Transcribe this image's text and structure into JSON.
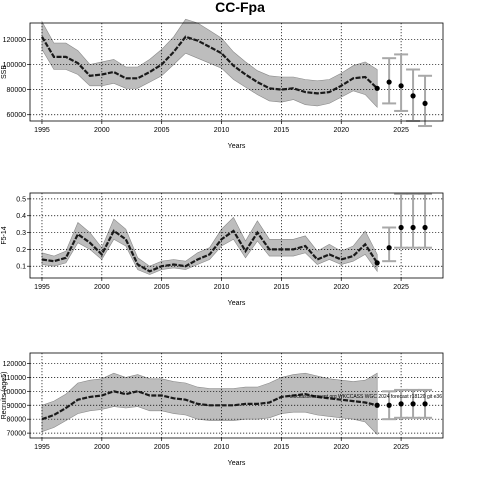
{
  "title": "CC-Fpa",
  "colors": {
    "band": "#bdbdbd",
    "line": "#1a1a1a",
    "forecast": "#a8a8a8",
    "grid": "#000000"
  },
  "chart_data": [
    {
      "type": "line",
      "xlabel": "Years",
      "ylabel": "SSB",
      "xlim": [
        1994,
        2028.5
      ],
      "ylim": [
        55000,
        133000
      ],
      "xticks": [
        1995,
        2000,
        2005,
        2010,
        2015,
        2020,
        2025
      ],
      "yticks": [
        60000,
        80000,
        100000,
        120000
      ],
      "grid": true,
      "x": [
        1995,
        1996,
        1997,
        1998,
        1999,
        2000,
        2001,
        2002,
        2003,
        2004,
        2005,
        2006,
        2007,
        2008,
        2009,
        2010,
        2011,
        2012,
        2013,
        2014,
        2015,
        2016,
        2017,
        2018,
        2019,
        2020,
        2021,
        2022,
        2023
      ],
      "series": [
        {
          "values": [
            122000,
            106000,
            106000,
            101000,
            91000,
            92000,
            94000,
            89000,
            89000,
            94000,
            100000,
            110000,
            122000,
            119000,
            114000,
            109000,
            99000,
            92000,
            86000,
            81000,
            80000,
            81000,
            78000,
            77000,
            78000,
            83000,
            89000,
            90000,
            81000
          ]
        }
      ],
      "lower": [
        112000,
        96000,
        96000,
        92000,
        83000,
        83000,
        85000,
        81000,
        81000,
        86000,
        91000,
        100000,
        109000,
        105000,
        101000,
        97000,
        88000,
        82000,
        76000,
        71000,
        70000,
        72000,
        68000,
        67000,
        69000,
        74000,
        79000,
        76000,
        66000
      ],
      "upper": [
        134000,
        117000,
        117000,
        111000,
        100000,
        102000,
        104000,
        98000,
        98000,
        104000,
        112000,
        122000,
        136000,
        133000,
        127000,
        121000,
        110000,
        102000,
        95000,
        91000,
        90000,
        90000,
        88000,
        87000,
        88000,
        93000,
        99000,
        102000,
        96000
      ],
      "forecast": {
        "x": [
          2024,
          2025,
          2026,
          2027
        ],
        "values": [
          86000,
          83000,
          75000,
          69000
        ],
        "lower": [
          69000,
          63000,
          55000,
          51000
        ],
        "upper": [
          105000,
          108000,
          96000,
          91000
        ]
      }
    },
    {
      "type": "line",
      "xlabel": "Years",
      "ylabel": "F5-14",
      "xlim": [
        1994,
        2028.5
      ],
      "ylim": [
        0.03,
        0.535
      ],
      "xticks": [
        1995,
        2000,
        2005,
        2010,
        2015,
        2020,
        2025
      ],
      "yticks": [
        0.1,
        0.2,
        0.3,
        0.4,
        0.5
      ],
      "grid": true,
      "x": [
        1995,
        1996,
        1997,
        1998,
        1999,
        2000,
        2001,
        2002,
        2003,
        2004,
        2005,
        2006,
        2007,
        2008,
        2009,
        2010,
        2011,
        2012,
        2013,
        2014,
        2015,
        2016,
        2017,
        2018,
        2019,
        2020,
        2021,
        2022,
        2023
      ],
      "series": [
        {
          "values": [
            0.14,
            0.13,
            0.15,
            0.29,
            0.24,
            0.17,
            0.31,
            0.26,
            0.11,
            0.07,
            0.1,
            0.11,
            0.1,
            0.14,
            0.17,
            0.26,
            0.31,
            0.19,
            0.3,
            0.2,
            0.2,
            0.2,
            0.22,
            0.14,
            0.17,
            0.14,
            0.16,
            0.23,
            0.12
          ]
        }
      ],
      "lower": [
        0.11,
        0.1,
        0.12,
        0.24,
        0.2,
        0.14,
        0.26,
        0.22,
        0.08,
        0.05,
        0.08,
        0.09,
        0.08,
        0.11,
        0.14,
        0.22,
        0.26,
        0.15,
        0.25,
        0.16,
        0.16,
        0.16,
        0.18,
        0.11,
        0.14,
        0.11,
        0.13,
        0.17,
        0.07
      ],
      "upper": [
        0.18,
        0.16,
        0.19,
        0.36,
        0.3,
        0.21,
        0.38,
        0.32,
        0.15,
        0.1,
        0.13,
        0.14,
        0.13,
        0.18,
        0.21,
        0.32,
        0.39,
        0.25,
        0.37,
        0.26,
        0.26,
        0.26,
        0.28,
        0.19,
        0.23,
        0.19,
        0.22,
        0.31,
        0.17
      ],
      "forecast": {
        "x": [
          2024,
          2025,
          2026,
          2027
        ],
        "values": [
          0.21,
          0.33,
          0.33,
          0.33
        ],
        "lower": [
          0.13,
          0.21,
          0.21,
          0.21
        ],
        "upper": [
          0.33,
          0.53,
          0.53,
          0.53
        ]
      }
    },
    {
      "type": "line",
      "xlabel": "Years",
      "ylabel": "Recruits (age5)",
      "xlim": [
        1994,
        2028.5
      ],
      "ylim": [
        66500,
        127500
      ],
      "xticks": [
        1995,
        2000,
        2005,
        2010,
        2015,
        2020,
        2025
      ],
      "yticks": [
        70000,
        80000,
        90000,
        100000,
        110000,
        120000
      ],
      "grid": true,
      "x": [
        1995,
        1996,
        1997,
        1998,
        1999,
        2000,
        2001,
        2002,
        2003,
        2004,
        2005,
        2006,
        2007,
        2008,
        2009,
        2010,
        2011,
        2012,
        2013,
        2014,
        2015,
        2016,
        2017,
        2018,
        2019,
        2020,
        2021,
        2022,
        2023
      ],
      "series": [
        {
          "values": [
            80000,
            83000,
            88000,
            94000,
            96000,
            97000,
            100000,
            98000,
            100000,
            97000,
            97000,
            95000,
            94000,
            91000,
            90000,
            90000,
            90000,
            91000,
            91000,
            92000,
            96000,
            97000,
            98000,
            96000,
            95000,
            94000,
            93000,
            92000,
            90000
          ]
        }
      ],
      "lower": [
        71000,
        74000,
        79000,
        84000,
        86000,
        87000,
        89000,
        88000,
        89000,
        86000,
        86000,
        84000,
        83000,
        80000,
        79000,
        79000,
        79000,
        80000,
        80000,
        81000,
        84000,
        85000,
        85000,
        83000,
        82000,
        81000,
        80000,
        78000,
        69000
      ],
      "upper": [
        90000,
        93000,
        98000,
        106000,
        108000,
        109000,
        113000,
        110000,
        112000,
        109000,
        109000,
        107000,
        106000,
        103000,
        102000,
        102000,
        102000,
        103000,
        103000,
        106000,
        110000,
        112000,
        113000,
        111000,
        109000,
        108000,
        107000,
        108000,
        113000
      ],
      "forecast": {
        "x": [
          2024,
          2025,
          2026,
          2027
        ],
        "values": [
          90000,
          91000,
          91000,
          91000
        ],
        "lower": [
          80000,
          81000,
          81000,
          81000
        ],
        "upper": [
          100000,
          101000,
          101000,
          101000
        ]
      },
      "annotation": "stockassessment.org WKCCASS WGC 2024 forecast r18120 git e36"
    }
  ]
}
